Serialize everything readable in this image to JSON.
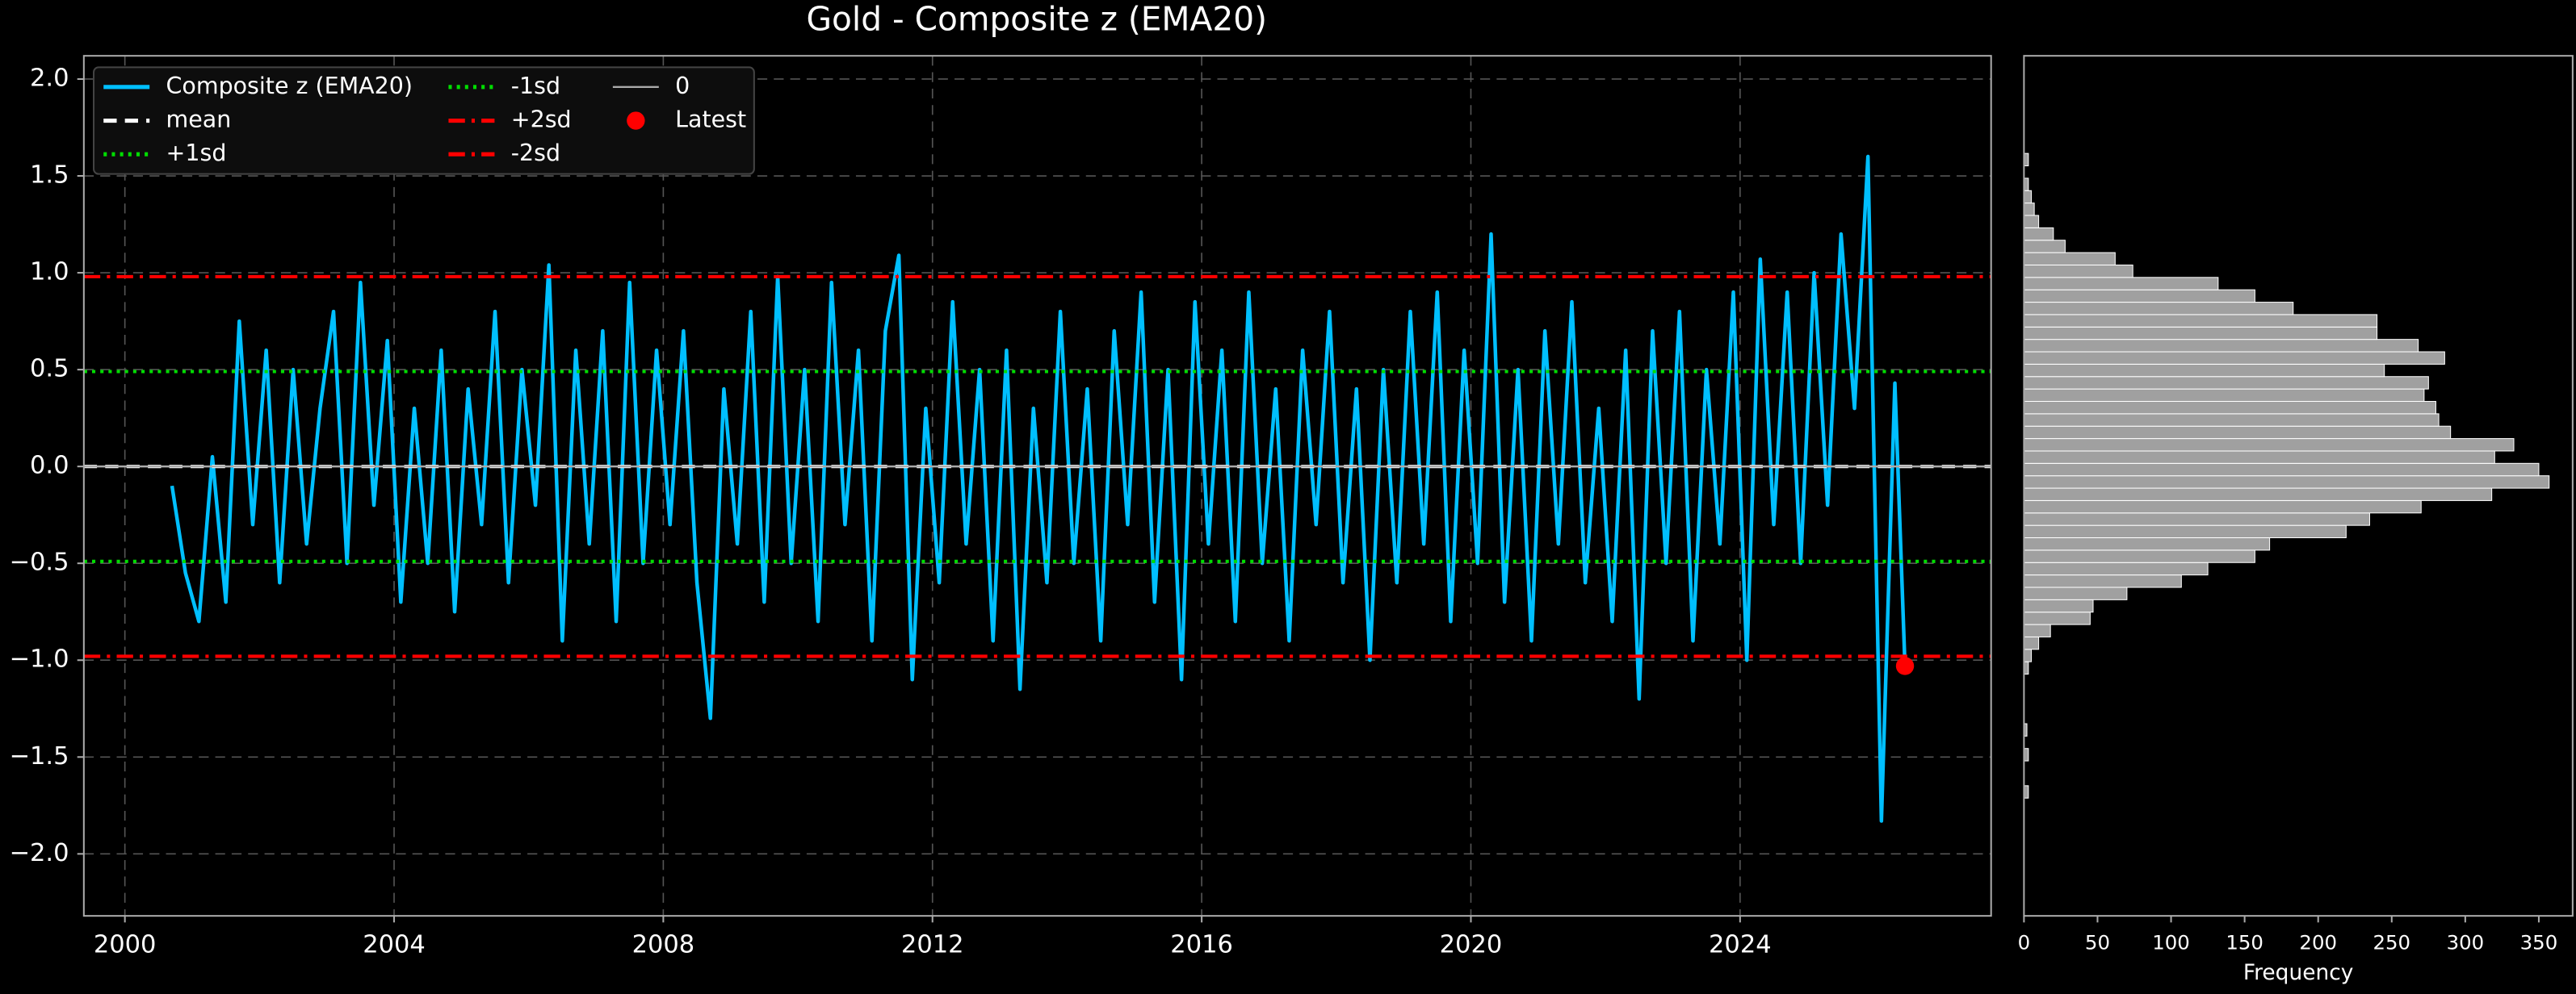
{
  "chart_data": [
    {
      "type": "line",
      "title": "Gold - Composite z (EMA20)",
      "x": [
        2000.7,
        2000.9,
        2001.1,
        2001.3,
        2001.5,
        2001.7,
        2001.9,
        2002.1,
        2002.3,
        2002.5,
        2002.7,
        2002.9,
        2003.1,
        2003.3,
        2003.5,
        2003.7,
        2003.9,
        2004.1,
        2004.3,
        2004.5,
        2004.7,
        2004.9,
        2005.1,
        2005.3,
        2005.5,
        2005.7,
        2005.9,
        2006.1,
        2006.3,
        2006.5,
        2006.7,
        2006.9,
        2007.1,
        2007.3,
        2007.5,
        2007.7,
        2007.9,
        2008.1,
        2008.3,
        2008.5,
        2008.7,
        2008.9,
        2009.1,
        2009.3,
        2009.5,
        2009.7,
        2009.9,
        2010.1,
        2010.3,
        2010.5,
        2010.7,
        2010.9,
        2011.1,
        2011.3,
        2011.5,
        2011.7,
        2011.9,
        2012.1,
        2012.3,
        2012.5,
        2012.7,
        2012.9,
        2013.1,
        2013.3,
        2013.5,
        2013.7,
        2013.9,
        2014.1,
        2014.3,
        2014.5,
        2014.7,
        2014.9,
        2015.1,
        2015.3,
        2015.5,
        2015.7,
        2015.9,
        2016.1,
        2016.3,
        2016.5,
        2016.7,
        2016.9,
        2017.1,
        2017.3,
        2017.5,
        2017.7,
        2017.9,
        2018.1,
        2018.3,
        2018.5,
        2018.7,
        2018.9,
        2019.1,
        2019.3,
        2019.5,
        2019.7,
        2019.9,
        2020.1,
        2020.3,
        2020.5,
        2020.7,
        2020.9,
        2021.1,
        2021.3,
        2021.5,
        2021.7,
        2021.9,
        2022.1,
        2022.3,
        2022.5,
        2022.7,
        2022.9,
        2023.1,
        2023.3,
        2023.5,
        2023.7,
        2023.9,
        2024.1,
        2024.3,
        2024.5,
        2024.7,
        2024.9,
        2025.1,
        2025.3,
        2025.5,
        2025.7,
        2025.9,
        2026.1,
        2026.3,
        2026.45
      ],
      "series": [
        {
          "name": "Composite z (EMA20)",
          "color": "#00bfff",
          "values": [
            -0.1,
            -0.55,
            -0.8,
            0.05,
            -0.7,
            0.75,
            -0.3,
            0.6,
            -0.6,
            0.5,
            -0.4,
            0.3,
            0.8,
            -0.5,
            0.95,
            -0.2,
            0.65,
            -0.7,
            0.3,
            -0.5,
            0.6,
            -0.75,
            0.4,
            -0.3,
            0.8,
            -0.6,
            0.5,
            -0.2,
            1.04,
            -0.9,
            0.6,
            -0.4,
            0.7,
            -0.8,
            0.95,
            -0.5,
            0.6,
            -0.3,
            0.7,
            -0.6,
            -1.3,
            0.4,
            -0.4,
            0.8,
            -0.7,
            0.98,
            -0.5,
            0.5,
            -0.8,
            0.95,
            -0.3,
            0.6,
            -0.9,
            0.7,
            1.09,
            -1.1,
            0.3,
            -0.6,
            0.85,
            -0.4,
            0.5,
            -0.9,
            0.6,
            -1.15,
            0.3,
            -0.6,
            0.8,
            -0.5,
            0.4,
            -0.9,
            0.7,
            -0.3,
            0.9,
            -0.7,
            0.5,
            -1.1,
            0.85,
            -0.4,
            0.6,
            -0.8,
            0.9,
            -0.5,
            0.4,
            -0.9,
            0.6,
            -0.3,
            0.8,
            -0.6,
            0.4,
            -1.0,
            0.5,
            -0.6,
            0.8,
            -0.4,
            0.9,
            -0.8,
            0.6,
            -0.5,
            1.2,
            -0.7,
            0.5,
            -0.9,
            0.7,
            -0.4,
            0.85,
            -0.6,
            0.3,
            -0.8,
            0.6,
            -1.2,
            0.7,
            -0.5,
            0.8,
            -0.9,
            0.5,
            -0.4,
            0.9,
            -1.0,
            1.07,
            -0.3,
            0.9,
            -0.5,
            1.0,
            -0.2,
            1.2,
            0.3,
            1.6,
            -1.83,
            0.43,
            -1.03
          ]
        }
      ],
      "hlines": [
        {
          "name": "mean",
          "value": 0,
          "color": "#ffffff",
          "style": "dashed"
        },
        {
          "name": "+1sd",
          "value": 0.49,
          "color": "#00dd00",
          "style": "dotted"
        },
        {
          "name": "-1sd",
          "value": -0.49,
          "color": "#00dd00",
          "style": "dotted"
        },
        {
          "name": "+2sd",
          "value": 0.98,
          "color": "#ff0000",
          "style": "dashdot"
        },
        {
          "name": "-2sd",
          "value": -0.98,
          "color": "#ff0000",
          "style": "dashdot"
        },
        {
          "name": "0",
          "value": 0,
          "color": "#aaaaaa",
          "style": "solid"
        }
      ],
      "latest": {
        "name": "Latest",
        "x": 2026.45,
        "value": -1.03,
        "color": "#ff0000"
      },
      "xlim": [
        1999.39,
        2027.73
      ],
      "ylim": [
        -2.32,
        2.12
      ],
      "xticks": [
        2000,
        2004,
        2008,
        2012,
        2016,
        2020,
        2024
      ],
      "yticks": [
        {
          "value": -2,
          "label": "−2.0"
        },
        {
          "value": -1.5,
          "label": "−1.5"
        },
        {
          "value": -1,
          "label": "−1.0"
        },
        {
          "value": -0.5,
          "label": "−0.5"
        },
        {
          "value": 0,
          "label": "0.0"
        },
        {
          "value": 0.5,
          "label": "0.5"
        },
        {
          "value": 1,
          "label": "1.0"
        },
        {
          "value": 1.5,
          "label": "1.5"
        },
        {
          "value": 2,
          "label": "2.0"
        }
      ],
      "grid": true,
      "legend": "upper left"
    },
    {
      "type": "histogram",
      "orientation": "horizontal",
      "xlabel": "Frequency",
      "color": "#a0a0a0",
      "bins": [
        -1.84,
        -1.776,
        -1.712,
        -1.648,
        -1.584,
        -1.52,
        -1.456,
        -1.392,
        -1.328,
        -1.264,
        -1.2,
        -1.136,
        -1.072,
        -1.008,
        -0.944,
        -0.88,
        -0.816,
        -0.752,
        -0.688,
        -0.624,
        -0.56,
        -0.496,
        -0.432,
        -0.368,
        -0.304,
        -0.24,
        -0.176,
        -0.112,
        -0.048,
        0.016,
        0.08,
        0.144,
        0.208,
        0.272,
        0.336,
        0.4,
        0.464,
        0.528,
        0.592,
        0.656,
        0.72,
        0.784,
        0.848,
        0.912,
        0.976,
        1.04,
        1.104,
        1.168,
        1.232,
        1.296,
        1.36,
        1.424,
        1.488,
        1.552,
        1.616
      ],
      "values": [
        0,
        0,
        3,
        0,
        0,
        3,
        0,
        2,
        0,
        0,
        0,
        0,
        3,
        5,
        10,
        18,
        45,
        47,
        70,
        107,
        125,
        157,
        167,
        219,
        235,
        270,
        318,
        357,
        350,
        320,
        333,
        290,
        282,
        280,
        272,
        275,
        245,
        286,
        268,
        240,
        240,
        183,
        157,
        132,
        74,
        62,
        28,
        20,
        10,
        7,
        5,
        3,
        0,
        3
      ],
      "xlim": [
        0,
        373
      ],
      "ylim": [
        -2.32,
        2.12
      ],
      "xticks": [
        0,
        50,
        100,
        150,
        200,
        250,
        300,
        350
      ]
    }
  ]
}
